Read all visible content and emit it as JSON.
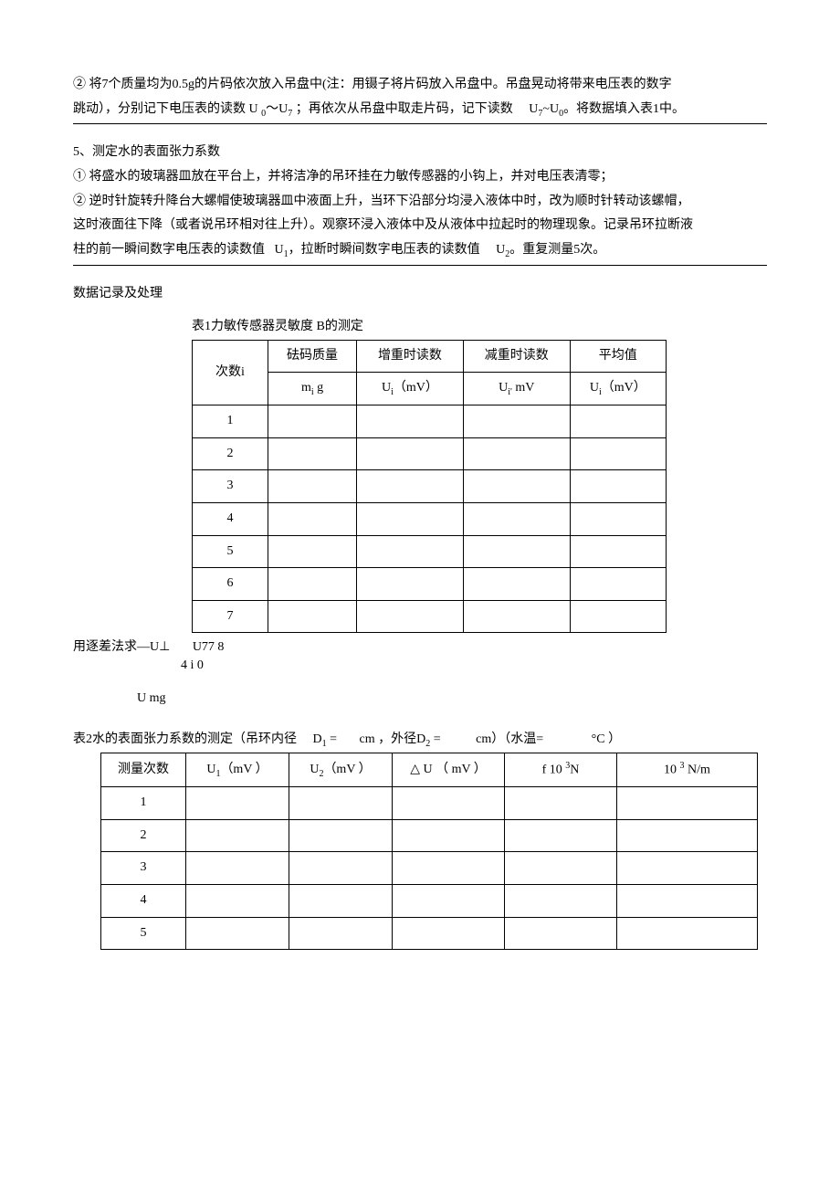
{
  "p1": "② 将7个质量均为0.5g的片码依次放入吊盘中(注：用镊子将片码放入吊盘中。吊盘晃动将带来电压表的数字",
  "p2_a": "跳动），分别记下电压表的读数 U ",
  "p2_b": "0",
  "p2_c": "～U",
  "p2_d": "7",
  "p2_e": " ；再依次从吊盘中取走片码，记下读数",
  "p2_f": "U",
  "p2_g": "7",
  "p2_h": "~U",
  "p2_i": "0",
  "p2_j": "。将数据填入表1中。",
  "p3": "5、测定水的表面张力系数",
  "p4": "① 将盛水的玻璃器皿放在平台上，并将洁净的吊环挂在力敏传感器的小钩上，并对电压表清零；",
  "p5": "② 逆时针旋转升降台大螺帽使玻璃器皿中液面上升，当环下沿部分均浸入液体中时，改为顺时针转动该螺帽，",
  "p6_a": "这时液面往下降（或者说吊环相对往上升）。观察环浸入液体中及从液体中拉起时的物理现象。记录吊环拉断液",
  "p7_a": "柱的前一瞬间数字电压表的读数值",
  "p7_b": "U",
  "p7_c": "1",
  "p7_d": "，拉断时瞬间数字电压表的读数值",
  "p7_e": "U",
  "p7_f": "2",
  "p7_g": "。重复测量5次。",
  "sec_title": "数据记录及处理",
  "t1_title": "表1力敏传感器灵敏度 B的测定",
  "t1_h1a": "次数i",
  "t1_h2a": "砝码质量",
  "t1_h2b_a": "m",
  "t1_h2b_b": "i",
  "t1_h2b_c": " g",
  "t1_h3a": "增重时读数",
  "t1_h3b_a": "U",
  "t1_h3b_b": "i",
  "t1_h3b_c": "（mV）",
  "t1_h4a": "减重时读数",
  "t1_h4b_a": "U",
  "t1_h4b_b": "i'",
  "t1_h4b_c": " mV",
  "t1_h5a": "平均值",
  "t1_h5b_a": "U",
  "t1_h5b_b": "i",
  "t1_h5b_c": "（mV）",
  "t1_rows": [
    "1",
    "2",
    "3",
    "4",
    "5",
    "6",
    "7"
  ],
  "f1_a": "用逐差法求—U⊥",
  "f1_b": "U77 8",
  "f1_c": "4 i 0",
  "f2": "U mg",
  "t2_title_a": "表2水的表面张力系数的测定（吊环内径",
  "t2_title_b": "D",
  "t2_title_c": "1",
  "t2_title_d": " =",
  "t2_title_e": "cm ，外径D",
  "t2_title_f": "2",
  "t2_title_g": " =",
  "t2_title_h": "cm）（水温=",
  "t2_title_i": "°C ）",
  "t2_h1": "测量次数",
  "t2_h2_a": "U",
  "t2_h2_b": "1",
  "t2_h2_c": "（mV ）",
  "t2_h3_a": "U",
  "t2_h3_b": "2",
  "t2_h3_c": "（mV ）",
  "t2_h4": "△ U （ mV ）",
  "t2_h5_a": "f 10 ",
  "t2_h5_b": "3",
  "t2_h5_c": "N",
  "t2_h6_a": "10 ",
  "t2_h6_b": "3",
  "t2_h6_c": " N/m",
  "t2_rows": [
    "1",
    "2",
    "3",
    "4",
    "5"
  ]
}
